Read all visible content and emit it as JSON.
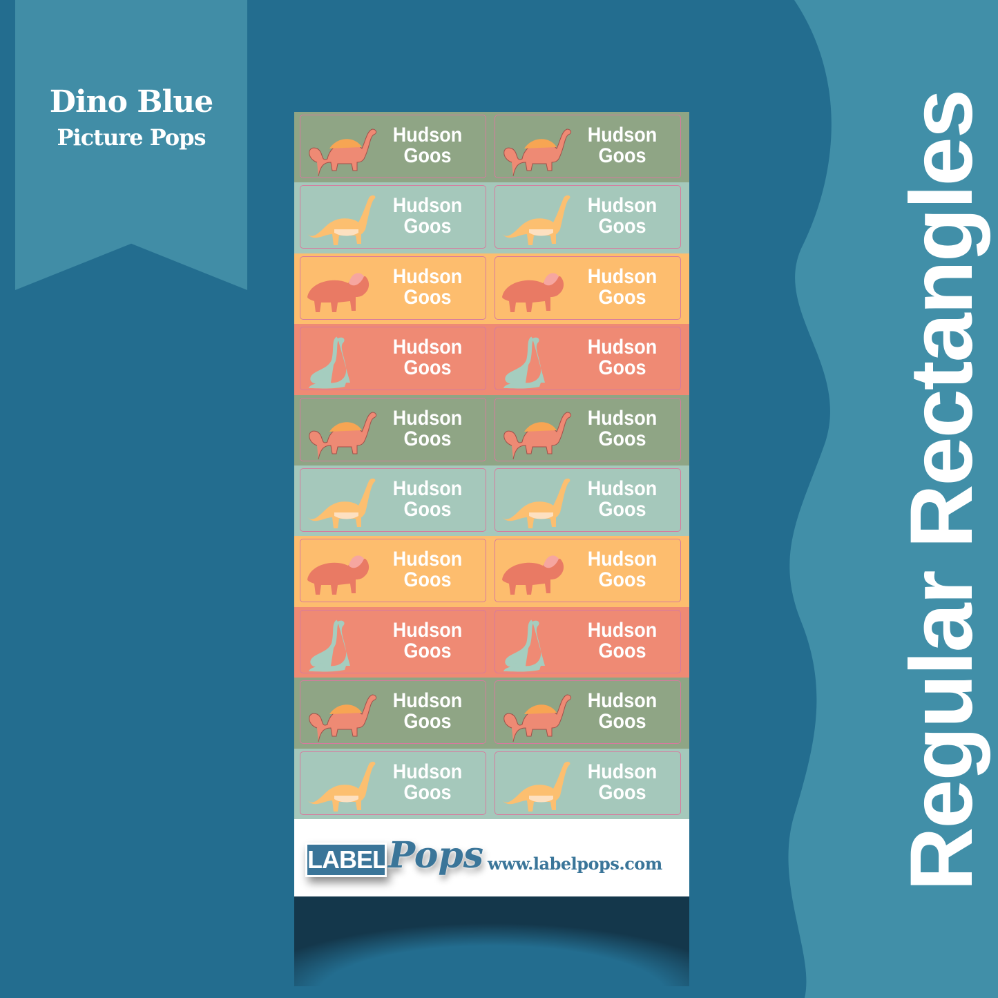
{
  "banner": {
    "title": "Dino Blue",
    "subtitle": "Picture Pops"
  },
  "side_title": "Regular Rectangles",
  "label_name": {
    "first": "Hudson",
    "last": "Goos"
  },
  "colors": {
    "background": "#236d8f",
    "wave": "#418fa8",
    "banner": "#418da6",
    "green": "#8fa585",
    "mint": "#a5c8bb",
    "orange": "#fdbd6e",
    "salmon": "#ef8a74",
    "brand": "#3a7599"
  },
  "rows": [
    {
      "bg": "green",
      "dino": "stegosaurus-icon",
      "dino_color": "#ee8a74"
    },
    {
      "bg": "mint",
      "dino": "brachiosaurus-icon",
      "dino_color": "#fcbf70"
    },
    {
      "bg": "orange",
      "dino": "triceratops-icon",
      "dino_color": "#e97a64"
    },
    {
      "bg": "salmon",
      "dino": "longneck-dino-icon",
      "dino_color": "#a5cdbf"
    },
    {
      "bg": "green",
      "dino": "stegosaurus-icon",
      "dino_color": "#ee8a74"
    },
    {
      "bg": "mint",
      "dino": "brachiosaurus-icon",
      "dino_color": "#fcbf70"
    },
    {
      "bg": "orange",
      "dino": "triceratops-icon",
      "dino_color": "#e97a64"
    },
    {
      "bg": "salmon",
      "dino": "longneck-dino-icon",
      "dino_color": "#a5cdbf"
    },
    {
      "bg": "green",
      "dino": "stegosaurus-icon",
      "dino_color": "#ee8a74"
    },
    {
      "bg": "mint",
      "dino": "brachiosaurus-icon",
      "dino_color": "#fcbf70"
    }
  ],
  "footer": {
    "logo_label": "LABEL",
    "logo_script": "Pops",
    "url": "www.labelpops.com"
  }
}
